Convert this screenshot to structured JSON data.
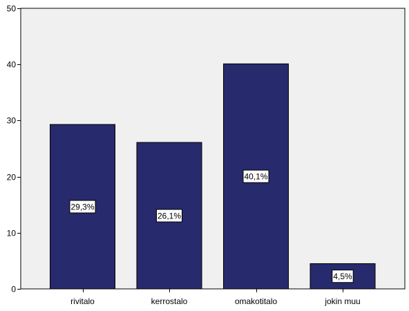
{
  "colors": {
    "bar": "#272A6C",
    "plot_background": "#F0F0F0",
    "label_box": "#FFFFFF",
    "axis": "#000000"
  },
  "chart_data": {
    "type": "bar",
    "categories": [
      "rivitalo",
      "kerrostalo",
      "omakotitalo",
      "jokin muu"
    ],
    "values": [
      29.3,
      26.1,
      40.1,
      4.5
    ],
    "data_labels": [
      "29,3%",
      "26,1%",
      "40,1%",
      "4,5%"
    ],
    "title": "",
    "xlabel": "",
    "ylabel": "",
    "ylim": [
      0,
      50
    ],
    "yticks": [
      0,
      10,
      20,
      30,
      40,
      50
    ],
    "grid": false,
    "legend": "none"
  }
}
